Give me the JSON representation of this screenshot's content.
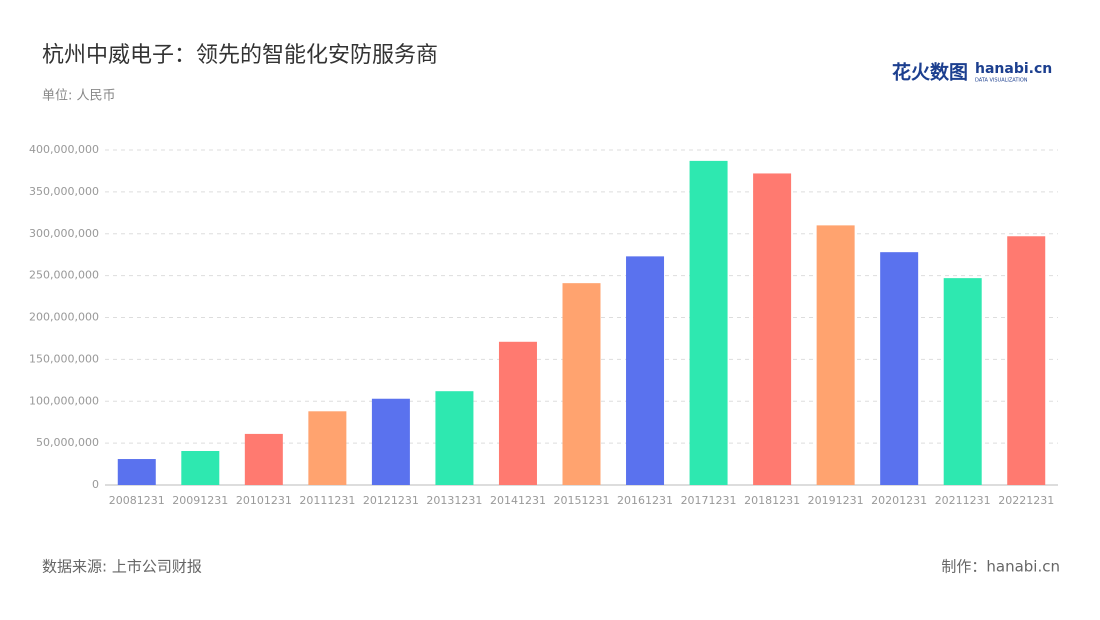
{
  "chart_data": {
    "type": "bar",
    "title": "杭州中威电子：领先的智能化安防服务商",
    "subtitle": "单位: 人民币",
    "source": "数据来源: 上市公司财报",
    "credit": "制作：hanabi.cn",
    "logo": {
      "cn": "花火数图",
      "en": "hanabi.cn",
      "tagline": "DATA VISUALIZATION"
    },
    "categories": [
      "20081231",
      "20091231",
      "20101231",
      "20111231",
      "20121231",
      "20131231",
      "20141231",
      "20151231",
      "20161231",
      "20171231",
      "20181231",
      "20191231",
      "20201231",
      "20211231",
      "20221231"
    ],
    "values": [
      31000000,
      40600000,
      61000000,
      88000000,
      103000000,
      112000000,
      171000000,
      241000000,
      273000000,
      387000000,
      372000000,
      310000000,
      278000000,
      247000000,
      297000000
    ],
    "colors": [
      "#5a72ee",
      "#2ee8b0",
      "#ff7a70",
      "#ffa36f",
      "#5a72ee",
      "#2ee8b0",
      "#ff7a70",
      "#ffa36f",
      "#5a72ee",
      "#2ee8b0",
      "#ff7a70",
      "#ffa36f",
      "#5a72ee",
      "#2ee8b0",
      "#ff7a70"
    ],
    "ylim": [
      0,
      400000000
    ],
    "yticks": [
      0,
      {
        "value": 50000000,
        "label": "50,000,000"
      },
      {
        "value": 100000000,
        "label": "100,000,000"
      },
      {
        "value": 150000000,
        "label": "150,000,000"
      },
      {
        "value": 200000000,
        "label": "200,000,000"
      },
      {
        "value": 250000000,
        "label": "250,000,000"
      },
      {
        "value": 300000000,
        "label": "300,000,000"
      },
      {
        "value": 350000000,
        "label": "350,000,000"
      },
      {
        "value": 400000000,
        "label": "400,000,000"
      }
    ],
    "grid": true
  }
}
